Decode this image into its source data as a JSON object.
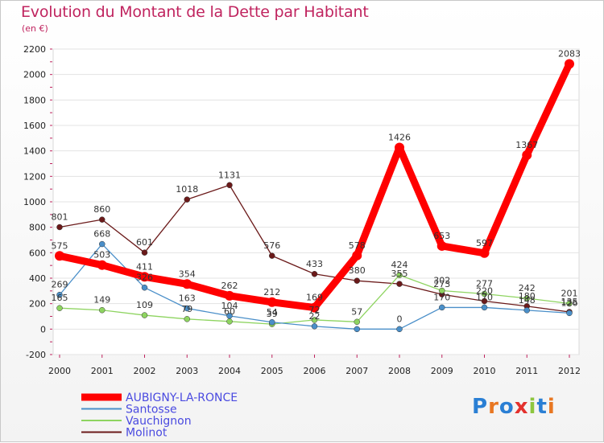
{
  "header": {
    "title": "Evolution du Montant de la Dette par Habitant",
    "unit": "(en €)"
  },
  "logo": {
    "text": "Proxiti",
    "letter_colors": [
      "#2a7fd4",
      "#e87722",
      "#2a7fd4",
      "#e3312d",
      "#8dc63f",
      "#2a7fd4",
      "#e87722"
    ]
  },
  "chart_data": {
    "type": "line",
    "title": "Evolution du Montant de la Dette par Habitant",
    "ylabel": "(en €)",
    "xlabel": "",
    "x": [
      2000,
      2001,
      2002,
      2003,
      2004,
      2005,
      2006,
      2007,
      2008,
      2009,
      2010,
      2011,
      2012
    ],
    "ylim": [
      -200,
      2200
    ],
    "yticks": [
      -200,
      0,
      200,
      400,
      600,
      800,
      1000,
      1200,
      1400,
      1600,
      1800,
      2000,
      2200
    ],
    "legend_position": "bottom-left",
    "series": [
      {
        "name": "Molinot",
        "color": "#6b1a1a",
        "width": 1.3,
        "marker": 3.5,
        "values": [
          801,
          860,
          601,
          1018,
          1131,
          576,
          433,
          380,
          355,
          273,
          220,
          180,
          135
        ]
      },
      {
        "name": "Vauchignon",
        "color": "#8ed460",
        "width": 1.3,
        "marker": 3.5,
        "values": [
          165,
          149,
          109,
          79,
          60,
          39,
          72,
          57,
          424,
          302,
          277,
          242,
          201
        ]
      },
      {
        "name": "Santosse",
        "color": "#4a8fc9",
        "width": 1.3,
        "marker": 3.5,
        "values": [
          269,
          668,
          326,
          163,
          104,
          54,
          22,
          0,
          0,
          170,
          170,
          148,
          126
        ]
      },
      {
        "name": "AUBIGNY-LA-RONCE",
        "color": "#ff0000",
        "width": 9,
        "marker": 6,
        "values": [
          575,
          503,
          411,
          354,
          262,
          212,
          169,
          578,
          1426,
          653,
          597,
          1367,
          2083
        ]
      }
    ],
    "labels": [
      {
        "series": "AUBIGNY-LA-RONCE",
        "items": [
          [
            "575",
            0,
            575
          ],
          [
            "503",
            1,
            503
          ],
          [
            "411",
            2,
            411
          ],
          [
            "354",
            3,
            354
          ],
          [
            "262",
            4,
            262
          ],
          [
            "212",
            5,
            212
          ],
          [
            "169",
            6,
            169
          ],
          [
            "578",
            7,
            578
          ],
          [
            "1426",
            8,
            1426
          ],
          [
            "653",
            9,
            653
          ],
          [
            "597",
            10,
            597
          ],
          [
            "1367",
            11,
            1367
          ],
          [
            "2083",
            12,
            2083
          ]
        ]
      },
      {
        "series": "Molinot",
        "items": [
          [
            "801",
            0,
            801
          ],
          [
            "860",
            1,
            860
          ],
          [
            "601",
            2,
            601
          ],
          [
            "1018",
            3,
            1018
          ],
          [
            "1131",
            4,
            1131
          ],
          [
            "576",
            5,
            576
          ],
          [
            "433",
            6,
            433
          ],
          [
            "380",
            7,
            380
          ],
          [
            "355",
            8,
            355
          ],
          [
            "273",
            9,
            273
          ],
          [
            "220",
            10,
            220
          ],
          [
            "180",
            11,
            180
          ],
          [
            "135",
            12,
            135
          ]
        ]
      },
      {
        "series": "Santosse",
        "items": [
          [
            "269",
            0,
            269
          ],
          [
            "668",
            1,
            668
          ],
          [
            "326",
            2,
            326
          ],
          [
            "163",
            3,
            163
          ],
          [
            "104",
            4,
            104
          ],
          [
            "54",
            5,
            54
          ],
          [
            "22",
            6,
            22
          ],
          [
            "0",
            8,
            0
          ],
          [
            "170",
            9,
            170
          ],
          [
            "170",
            10,
            170
          ],
          [
            "148",
            11,
            148
          ],
          [
            "126",
            12,
            126
          ]
        ]
      },
      {
        "series": "Vauchignon",
        "items": [
          [
            "165",
            0,
            165
          ],
          [
            "149",
            1,
            149
          ],
          [
            "109",
            2,
            109
          ],
          [
            "79",
            3,
            79
          ],
          [
            "60",
            4,
            60
          ],
          [
            "39",
            5,
            39
          ],
          [
            "72",
            6,
            72
          ],
          [
            "57",
            7,
            57
          ],
          [
            "424",
            8,
            424
          ],
          [
            "302",
            9,
            302
          ],
          [
            "277",
            10,
            277
          ],
          [
            "242",
            11,
            242
          ],
          [
            "201",
            12,
            201
          ]
        ]
      }
    ],
    "legend": [
      "AUBIGNY-LA-RONCE",
      "Santosse",
      "Vauchignon",
      "Molinot"
    ],
    "legend_text_color": "#4a4ae0"
  }
}
